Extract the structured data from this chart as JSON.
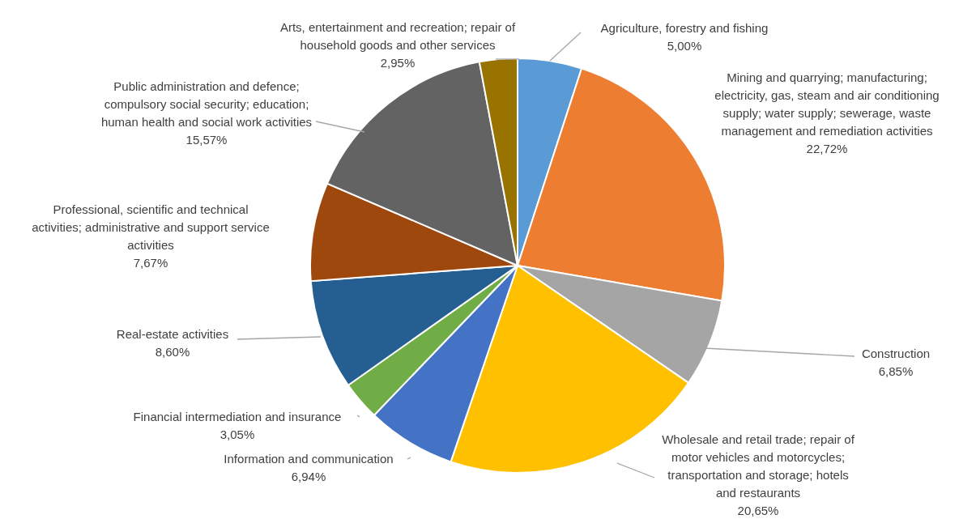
{
  "chart_data": {
    "type": "pie",
    "categories": [
      "Agriculture, forestry and fishing",
      "Mining and quarrying; manufacturing; electricity, gas, steam and air conditioning supply; water supply; sewerage, waste management and remediation activities",
      "Construction",
      "Wholesale and retail trade; repair of motor vehicles and motorcycles; transportation and storage; hotels and restaurants",
      "Information and communication",
      "Financial intermediation  and insurance",
      "Real-estate activities",
      "Professional, scientific and technical activities; administrative and support service activities",
      "Public administration and defence; compulsory social security; education; human health and social work activities",
      "Arts, entertainment and recreation; repair of household goods and other services"
    ],
    "values": [
      5.0,
      22.72,
      6.85,
      20.65,
      6.94,
      3.05,
      8.6,
      7.67,
      15.57,
      2.95
    ],
    "value_labels": [
      "5,00%",
      "22,72%",
      "6,85%",
      "20,65%",
      "6,94%",
      "3,05%",
      "8,60%",
      "7,67%",
      "15,57%",
      "2,95%"
    ],
    "colors": [
      "#5b9bd5",
      "#ed7d31",
      "#a5a5a5",
      "#ffc000",
      "#4472c4",
      "#70ad47",
      "#255e91",
      "#9e480e",
      "#636363",
      "#997300"
    ]
  }
}
